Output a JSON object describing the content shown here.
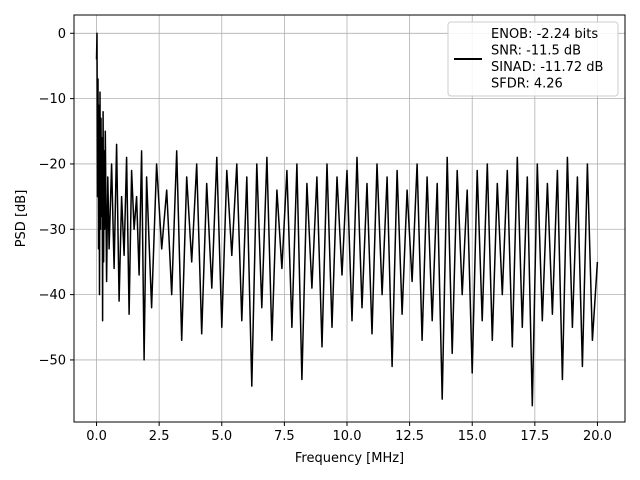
{
  "chart_data": {
    "type": "line",
    "xlabel": "Frequency [MHz]",
    "ylabel": "PSD [dB]",
    "xlim": [
      -0.9,
      21.1
    ],
    "ylim": [
      -59.5,
      2.8
    ],
    "grid": true,
    "x_ticks": [
      0.0,
      2.5,
      5.0,
      7.5,
      10.0,
      12.5,
      15.0,
      17.5,
      20.0
    ],
    "x_tick_labels": [
      "0.0",
      "2.5",
      "5.0",
      "7.5",
      "10.0",
      "12.5",
      "15.0",
      "17.5",
      "20.0"
    ],
    "y_ticks": [
      0,
      -10,
      -20,
      -30,
      -40,
      -50
    ],
    "y_tick_labels": [
      "0",
      "−10",
      "−20",
      "−30",
      "−40",
      "−50"
    ],
    "line_color": "#000000",
    "legend": {
      "location": "upper right",
      "entries": [
        "ENOB: -2.24 bits",
        "SNR: -11.5 dB",
        "SINAD: -11.72 dB",
        "SFDR: 4.26"
      ]
    },
    "series": [
      {
        "x": [
          0.0,
          0.02,
          0.04,
          0.06,
          0.08,
          0.1,
          0.12,
          0.14,
          0.16,
          0.18,
          0.2,
          0.22,
          0.24,
          0.26,
          0.28,
          0.3,
          0.32,
          0.35,
          0.4,
          0.45,
          0.5,
          0.6,
          0.7,
          0.8,
          0.9,
          1.0,
          1.1,
          1.2,
          1.3,
          1.4,
          1.5,
          1.6,
          1.7,
          1.8,
          1.9,
          2.0,
          2.2,
          2.4,
          2.6,
          2.8,
          3.0,
          3.2,
          3.4,
          3.6,
          3.8,
          4.0,
          4.2,
          4.4,
          4.6,
          4.8,
          5.0,
          5.2,
          5.4,
          5.6,
          5.8,
          6.0,
          6.2,
          6.4,
          6.6,
          6.8,
          7.0,
          7.2,
          7.4,
          7.6,
          7.8,
          8.0,
          8.2,
          8.4,
          8.6,
          8.8,
          9.0,
          9.2,
          9.4,
          9.6,
          9.8,
          10.0,
          10.2,
          10.4,
          10.6,
          10.8,
          11.0,
          11.2,
          11.4,
          11.6,
          11.8,
          12.0,
          12.2,
          12.4,
          12.6,
          12.8,
          13.0,
          13.2,
          13.4,
          13.6,
          13.8,
          14.0,
          14.2,
          14.4,
          14.6,
          14.8,
          15.0,
          15.2,
          15.4,
          15.6,
          15.8,
          16.0,
          16.2,
          16.4,
          16.6,
          16.8,
          17.0,
          17.2,
          17.4,
          17.6,
          17.8,
          18.0,
          18.2,
          18.4,
          18.6,
          18.8,
          19.0,
          19.2,
          19.4,
          19.6,
          19.8,
          20.0
        ],
        "y": [
          -4,
          0,
          -25,
          -7,
          -33,
          -11,
          -40,
          -9,
          -30,
          -13,
          -28,
          -16,
          -44,
          -12,
          -35,
          -18,
          -30,
          -15,
          -38,
          -22,
          -33,
          -20,
          -36,
          -17,
          -41,
          -25,
          -34,
          -19,
          -43,
          -21,
          -30,
          -25,
          -37,
          -18,
          -50,
          -22,
          -42,
          -20,
          -33,
          -24,
          -40,
          -18,
          -47,
          -22,
          -35,
          -20,
          -46,
          -23,
          -39,
          -19,
          -45,
          -21,
          -34,
          -20,
          -44,
          -22,
          -54,
          -20,
          -42,
          -19,
          -47,
          -24,
          -36,
          -21,
          -45,
          -20,
          -53,
          -23,
          -39,
          -22,
          -48,
          -20,
          -45,
          -22,
          -37,
          -21,
          -44,
          -19,
          -42,
          -23,
          -46,
          -20,
          -40,
          -22,
          -51,
          -21,
          -43,
          -24,
          -38,
          -20,
          -47,
          -22,
          -44,
          -23,
          -56,
          -19,
          -49,
          -21,
          -40,
          -24,
          -52,
          -21,
          -44,
          -20,
          -47,
          -23,
          -40,
          -21,
          -48,
          -19,
          -45,
          -22,
          -57,
          -20,
          -44,
          -23,
          -43,
          -21,
          -53,
          -19,
          -45,
          -22,
          -51,
          -20,
          -47,
          -35
        ]
      }
    ]
  }
}
